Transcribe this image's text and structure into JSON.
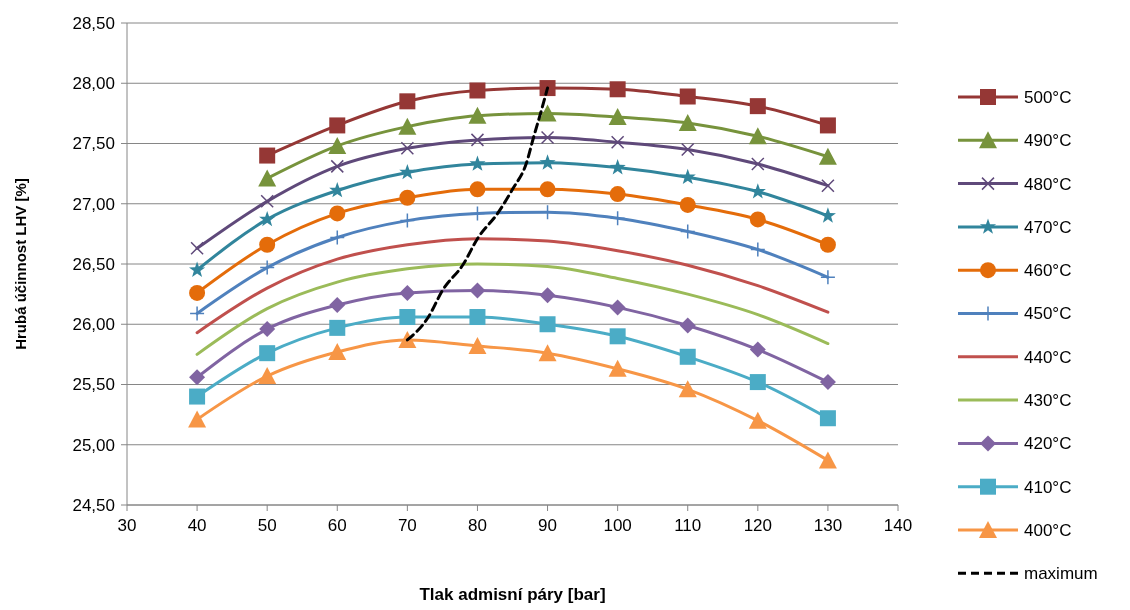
{
  "chart_data": {
    "type": "line",
    "xlabel": "Tlak admisní páry [bar]",
    "ylabel": "Hrubá účinnost LHV [%]",
    "xlim": [
      30,
      140
    ],
    "xticks": [
      30,
      40,
      50,
      60,
      70,
      80,
      90,
      100,
      110,
      120,
      130,
      140
    ],
    "ylim": [
      24.5,
      28.5
    ],
    "yticks": [
      {
        "value": 24.5,
        "label": "24,50"
      },
      {
        "value": 25,
        "label": "25,00"
      },
      {
        "value": 25.5,
        "label": "25,50"
      },
      {
        "value": 26,
        "label": "26,00"
      },
      {
        "value": 26.5,
        "label": "26,50"
      },
      {
        "value": 27,
        "label": "27,00"
      },
      {
        "value": 27.5,
        "label": "27,50"
      },
      {
        "value": 28,
        "label": "28,00"
      },
      {
        "value": 28.5,
        "label": "28,50"
      }
    ],
    "grid": "y",
    "legend": "right",
    "series": [
      {
        "name": "500°C",
        "color": "#953735",
        "marker": "square",
        "x": [
          50,
          60,
          70,
          80,
          90,
          100,
          110,
          120,
          130
        ],
        "values": [
          27.4,
          27.65,
          27.85,
          27.94,
          27.96,
          27.95,
          27.89,
          27.81,
          27.65
        ]
      },
      {
        "name": "490°C",
        "color": "#77933c",
        "marker": "triangle",
        "x": [
          50,
          60,
          70,
          80,
          90,
          100,
          110,
          120,
          130
        ],
        "values": [
          27.21,
          27.48,
          27.64,
          27.73,
          27.75,
          27.72,
          27.67,
          27.56,
          27.39
        ]
      },
      {
        "name": "480°C",
        "color": "#5f497a",
        "marker": "cross",
        "x": [
          40,
          50,
          60,
          70,
          80,
          90,
          100,
          110,
          120,
          130
        ],
        "values": [
          26.63,
          27.02,
          27.31,
          27.46,
          27.53,
          27.55,
          27.51,
          27.45,
          27.33,
          27.15
        ]
      },
      {
        "name": "470°C",
        "color": "#31859c",
        "marker": "star",
        "x": [
          40,
          50,
          60,
          70,
          80,
          90,
          100,
          110,
          120,
          130
        ],
        "values": [
          26.45,
          26.87,
          27.11,
          27.26,
          27.33,
          27.34,
          27.3,
          27.22,
          27.1,
          26.9
        ]
      },
      {
        "name": "460°C",
        "color": "#e46c0a",
        "marker": "circle",
        "x": [
          40,
          50,
          60,
          70,
          80,
          90,
          100,
          110,
          120,
          130
        ],
        "values": [
          26.26,
          26.66,
          26.92,
          27.05,
          27.12,
          27.12,
          27.08,
          26.99,
          26.87,
          26.66
        ]
      },
      {
        "name": "450°C",
        "color": "#4f81bd",
        "marker": "plus",
        "x": [
          40,
          50,
          60,
          70,
          80,
          90,
          100,
          110,
          120,
          130
        ],
        "values": [
          26.09,
          26.47,
          26.72,
          26.86,
          26.92,
          26.93,
          26.88,
          26.77,
          26.62,
          26.39
        ]
      },
      {
        "name": "440°C",
        "color": "#c0504d",
        "marker": "none",
        "x": [
          40,
          50,
          60,
          70,
          80,
          90,
          100,
          110,
          120,
          130
        ],
        "values": [
          25.93,
          26.3,
          26.54,
          26.66,
          26.71,
          26.69,
          26.61,
          26.49,
          26.32,
          26.1
        ]
      },
      {
        "name": "430°C",
        "color": "#9bbb59",
        "marker": "none",
        "x": [
          40,
          50,
          60,
          70,
          80,
          90,
          100,
          110,
          120,
          130
        ],
        "values": [
          25.75,
          26.13,
          26.35,
          26.46,
          26.5,
          26.48,
          26.38,
          26.25,
          26.08,
          25.84
        ]
      },
      {
        "name": "420°C",
        "color": "#8064a2",
        "marker": "diamond",
        "x": [
          40,
          50,
          60,
          70,
          80,
          90,
          100,
          110,
          120,
          130
        ],
        "values": [
          25.56,
          25.96,
          26.16,
          26.26,
          26.28,
          26.24,
          26.14,
          25.99,
          25.79,
          25.52
        ]
      },
      {
        "name": "410°C",
        "color": "#4bacc6",
        "marker": "square",
        "x": [
          40,
          50,
          60,
          70,
          80,
          90,
          100,
          110,
          120,
          130
        ],
        "values": [
          25.4,
          25.76,
          25.97,
          26.06,
          26.06,
          26.0,
          25.9,
          25.73,
          25.52,
          25.22
        ]
      },
      {
        "name": "400°C",
        "color": "#f79646",
        "marker": "triangle",
        "x": [
          40,
          50,
          60,
          70,
          80,
          90,
          100,
          110,
          120,
          130
        ],
        "values": [
          25.21,
          25.57,
          25.77,
          25.87,
          25.82,
          25.76,
          25.63,
          25.46,
          25.2,
          24.87
        ]
      },
      {
        "name": "maximum",
        "color": "#000000",
        "marker": "none",
        "line_style": "dashed",
        "x": [
          70,
          73,
          75,
          78,
          80,
          83,
          85,
          87,
          88,
          89,
          90
        ],
        "values": [
          25.87,
          26.06,
          26.28,
          26.5,
          26.71,
          26.93,
          27.12,
          27.34,
          27.55,
          27.75,
          27.96
        ]
      }
    ]
  }
}
